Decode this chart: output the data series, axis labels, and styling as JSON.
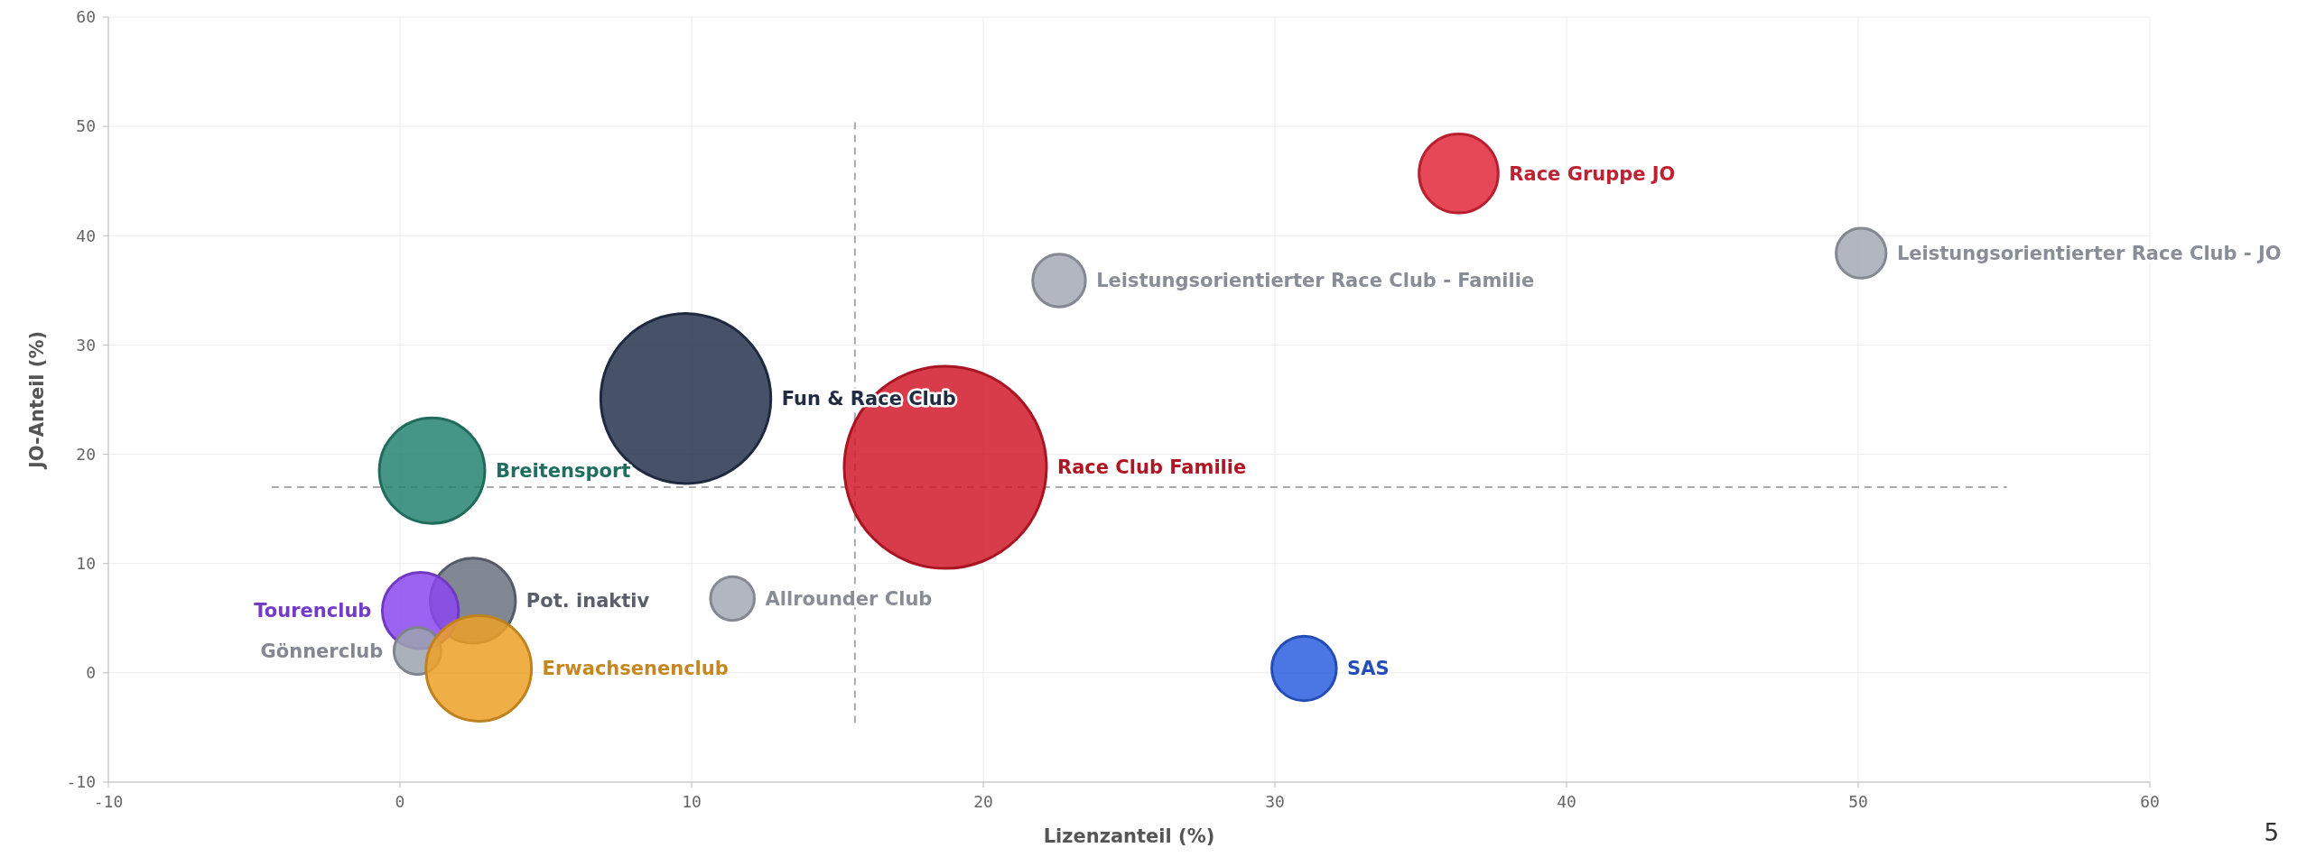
{
  "chart_data": {
    "type": "bubble",
    "xlabel": "Lizenzanteil (%)",
    "ylabel": "JO-Anteil (%)",
    "xlim": [
      -10,
      60
    ],
    "xticks": [
      -10,
      0,
      10,
      20,
      30,
      40,
      50,
      60
    ],
    "ylim": [
      -10,
      60
    ],
    "yticks": [
      -10,
      0,
      10,
      20,
      30,
      40,
      50,
      60
    ],
    "grid": true,
    "series": [
      {
        "name": "Race Gruppe JO",
        "color": "#e3283b",
        "x": [
          36.3
        ],
        "values": [
          45.7
        ],
        "sizes": [
          0.153
        ]
      },
      {
        "name": "Leistungsorientierter Race Club - Familie",
        "color": "#a3a9b5",
        "x": [
          22.6
        ],
        "values": [
          35.9
        ],
        "sizes": [
          0.068
        ]
      },
      {
        "name": "Leistungsorientierter Race Club - JO",
        "color": "#a3a9b5",
        "x": [
          50.1
        ],
        "values": [
          38.4
        ],
        "sizes": [
          0.061
        ]
      },
      {
        "name": "Fun & Race Club",
        "color": "#27344f",
        "x": [
          9.8
        ],
        "values": [
          25.1
        ],
        "sizes": [
          0.707
        ]
      },
      {
        "name": "Breitensport",
        "color": "#268472",
        "x": [
          1.1
        ],
        "values": [
          18.5
        ],
        "sizes": [
          0.272
        ]
      },
      {
        "name": "Race Club Familie",
        "color": "#d11a2a",
        "x": [
          18.7
        ],
        "values": [
          18.8
        ],
        "sizes": [
          1
        ]
      },
      {
        "name": "Allrounder Club",
        "color": "#a3a9b5",
        "x": [
          11.4
        ],
        "values": [
          6.8
        ],
        "sizes": [
          0.047
        ]
      },
      {
        "name": "Pot. inaktiv",
        "color": "#6b7280",
        "x": [
          2.5
        ],
        "values": [
          6.6
        ],
        "sizes": [
          0.177
        ]
      },
      {
        "name": "Tourenclub",
        "color": "#8b46f0",
        "x": [
          0.7
        ],
        "values": [
          5.7
        ],
        "sizes": [
          0.142
        ]
      },
      {
        "name": "Gönnerclub",
        "color": "#9ca3af",
        "x": [
          0.6
        ],
        "values": [
          2.0
        ],
        "sizes": [
          0.054
        ]
      },
      {
        "name": "Erwachsenenclub",
        "color": "#eda126",
        "x": [
          2.7
        ],
        "values": [
          0.4
        ],
        "sizes": [
          0.272
        ]
      },
      {
        "name": "SAS",
        "color": "#2b5fe0",
        "x": [
          31.0
        ],
        "values": [
          0.4
        ],
        "sizes": [
          0.102
        ]
      }
    ],
    "ref_lines": [
      {
        "axis": "x",
        "value": 15.6,
        "color": "#aaaaaa",
        "line_style": "dashed"
      },
      {
        "axis": "y",
        "value": 17,
        "color": "#aaaaaa",
        "line_style": "dashed"
      }
    ],
    "annotations": [
      "5"
    ]
  }
}
